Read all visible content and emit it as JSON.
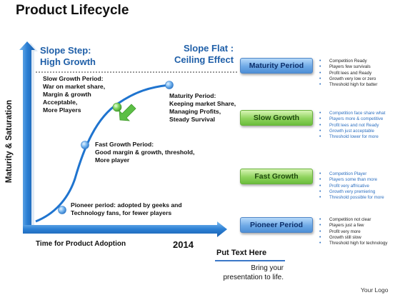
{
  "title": "Product Lifecycle",
  "slope_step": {
    "line1": "Slope Step:",
    "line2": "High Growth"
  },
  "slope_flat": {
    "line1": "Slope Flat :",
    "line2": "Ceiling Effect"
  },
  "axis": {
    "y_label": "Maturity & Saturation",
    "x_label": "Time for Product Adoption",
    "year": "2014"
  },
  "phases": {
    "slow": [
      "Slow Growth Period:",
      "War on market share,",
      "Margin & growth",
      "Acceptable,",
      "More Players"
    ],
    "maturity": [
      "Maturity Period:",
      "Keeping market Share,",
      "Managing Profits,",
      "Steady Survival"
    ],
    "fast": [
      "Fast Growth Period:",
      "Good margin & growth, threshold,",
      "More player"
    ],
    "pioneer": [
      "Pioneer period: adopted by geeks and",
      "Technology fans, for fewer players"
    ]
  },
  "periods": [
    {
      "label": "Maturity Period",
      "style": "blue",
      "bullet_color": "dark",
      "bullets": [
        "Competition Ready",
        "Players few survivals",
        "Profit lees and Ready",
        "Growth very  low or zero",
        "Threshold high for batter"
      ]
    },
    {
      "label": "Slow Growth",
      "style": "green",
      "bullet_color": "blue",
      "bullets": [
        "Competition face share what",
        "Players more & competitive",
        "Profit lees and not Ready",
        "Growth  just acceptable",
        "Threshold lower for more"
      ]
    },
    {
      "label": "Fast Growth",
      "style": "green",
      "bullet_color": "blue",
      "bullets": [
        "Competition Player",
        "Players some than more",
        "Profit very  affricative",
        "Growth very  premiering",
        "Threshold possible for more"
      ]
    },
    {
      "label": "Pioneer Period",
      "style": "blue",
      "bullet_color": "dark",
      "bullets": [
        "Competition not clear",
        "Players just a few",
        "Profit very  more",
        "Growth still slow",
        "Threshold high for technology"
      ]
    }
  ],
  "footer": {
    "put_text": "Put Text Here",
    "bring_text": "Bring your presentation to life.",
    "logo": "Your Logo"
  },
  "colors": {
    "axis_blue": "#2b7fd4",
    "curve_blue": "#1f74cf",
    "green_node": "#4fb13a",
    "arrow_green": "#5cbf45"
  }
}
